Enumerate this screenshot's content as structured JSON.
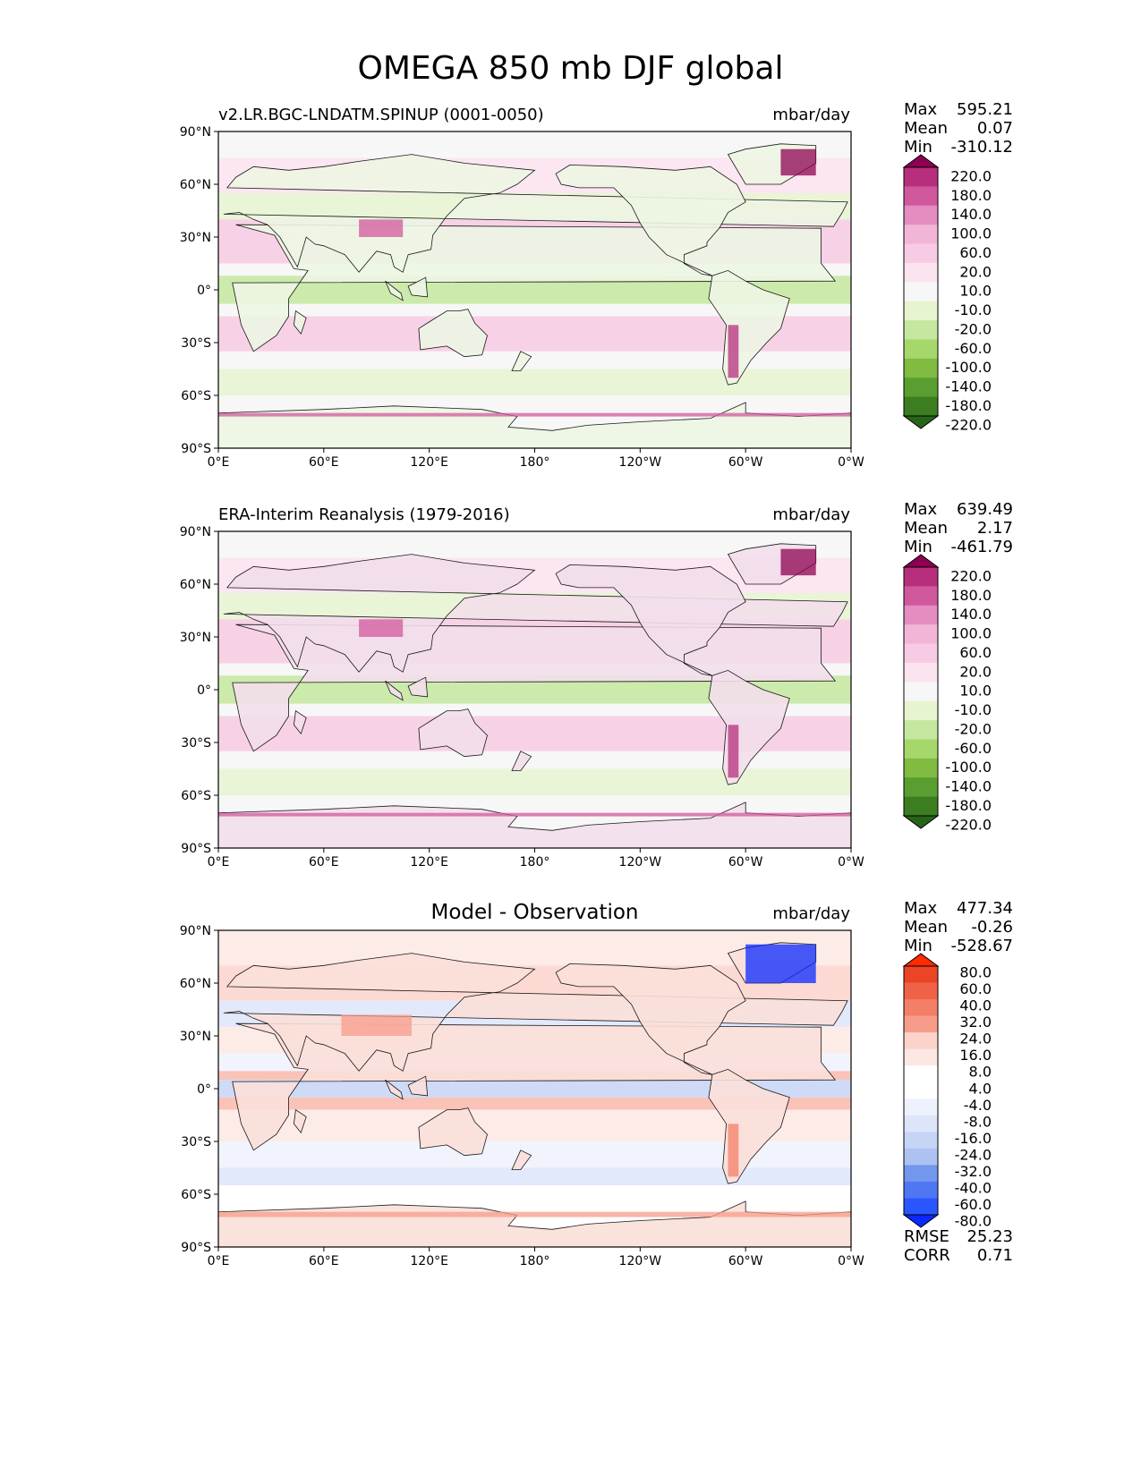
{
  "figure": {
    "title": "OMEGA 850 mb DJF global"
  },
  "colors": {
    "pink_scale": [
      "#276419",
      "#3b7d1f",
      "#5a9e31",
      "#7fbc41",
      "#a6d76b",
      "#c6e7a0",
      "#e6f5d0",
      "#f7f7f7",
      "#fbe3f0",
      "#f7cbe3",
      "#f1b5d8",
      "#e58cc0",
      "#d1589c",
      "#b72e7d",
      "#8e0152"
    ],
    "diff_scale": [
      "#0a28ff",
      "#2a56ff",
      "#4f77f4",
      "#7397ee",
      "#94adf0",
      "#aec2f2",
      "#c6d4f5",
      "#dde5f9",
      "#eef2fc",
      "#ffffff",
      "#ffffff",
      "#fde7e3",
      "#fbd3cb",
      "#f9b9ab",
      "#f79c8a",
      "#f47f67",
      "#f06248",
      "#ec4426",
      "#ff2a00"
    ]
  },
  "panels": [
    {
      "left_title": "v2.LR.BGC-LNDATM.SPINUP (0001-0050)",
      "center_title": "",
      "units": "mbar/day",
      "stats": [
        {
          "label": "Max",
          "value": "595.21"
        },
        {
          "label": "Mean",
          "value": "0.07"
        },
        {
          "label": "Min",
          "value": "-310.12"
        }
      ],
      "extra_stats": [],
      "colorbar_labels": [
        "220.0",
        "180.0",
        "140.0",
        "100.0",
        "60.0",
        "20.0",
        "10.0",
        "-10.0",
        "-20.0",
        "-60.0",
        "-100.0",
        "-140.0",
        "-180.0",
        "-220.0"
      ]
    },
    {
      "left_title": "ERA-Interim Reanalysis (1979-2016)",
      "center_title": "",
      "units": "mbar/day",
      "stats": [
        {
          "label": "Max",
          "value": "639.49"
        },
        {
          "label": "Mean",
          "value": "2.17"
        },
        {
          "label": "Min",
          "value": "-461.79"
        }
      ],
      "extra_stats": [],
      "colorbar_labels": [
        "220.0",
        "180.0",
        "140.0",
        "100.0",
        "60.0",
        "20.0",
        "10.0",
        "-10.0",
        "-20.0",
        "-60.0",
        "-100.0",
        "-140.0",
        "-180.0",
        "-220.0"
      ]
    },
    {
      "left_title": "",
      "center_title": "Model - Observation",
      "units": "mbar/day",
      "stats": [
        {
          "label": "Max",
          "value": "477.34"
        },
        {
          "label": "Mean",
          "value": "-0.26"
        },
        {
          "label": "Min",
          "value": "-528.67"
        }
      ],
      "extra_stats": [
        {
          "label": "RMSE",
          "value": "25.23"
        },
        {
          "label": "CORR",
          "value": "0.71"
        }
      ],
      "colorbar_labels": [
        "80.0",
        "60.0",
        "40.0",
        "32.0",
        "24.0",
        "16.0",
        "8.0",
        "4.0",
        "-4.0",
        "-8.0",
        "-16.0",
        "-24.0",
        "-32.0",
        "-40.0",
        "-60.0",
        "-80.0"
      ]
    }
  ],
  "chart_data": [
    {
      "type": "heatmap",
      "title": "v2.LR.BGC-LNDATM.SPINUP (0001-0050)",
      "units": "mbar/day",
      "x_ticks": [
        "0°E",
        "60°E",
        "120°E",
        "180°",
        "120°W",
        "60°W",
        "0°W"
      ],
      "y_ticks": [
        "90°N",
        "60°N",
        "30°N",
        "0°",
        "30°S",
        "60°S",
        "90°S"
      ],
      "xlim": [
        0,
        360
      ],
      "ylim": [
        -90,
        90
      ],
      "levels": [
        -220,
        -180,
        -140,
        -100,
        -60,
        -20,
        -10,
        10,
        20,
        60,
        100,
        140,
        180,
        220
      ],
      "max": 595.21,
      "mean": 0.07,
      "min": -310.12
    },
    {
      "type": "heatmap",
      "title": "ERA-Interim Reanalysis (1979-2016)",
      "units": "mbar/day",
      "x_ticks": [
        "0°E",
        "60°E",
        "120°E",
        "180°",
        "120°W",
        "60°W",
        "0°W"
      ],
      "y_ticks": [
        "90°N",
        "60°N",
        "30°N",
        "0°",
        "30°S",
        "60°S",
        "90°S"
      ],
      "xlim": [
        0,
        360
      ],
      "ylim": [
        -90,
        90
      ],
      "levels": [
        -220,
        -180,
        -140,
        -100,
        -60,
        -20,
        -10,
        10,
        20,
        60,
        100,
        140,
        180,
        220
      ],
      "max": 639.49,
      "mean": 2.17,
      "min": -461.79
    },
    {
      "type": "heatmap",
      "title": "Model - Observation",
      "units": "mbar/day",
      "x_ticks": [
        "0°E",
        "60°E",
        "120°E",
        "180°",
        "120°W",
        "60°W",
        "0°W"
      ],
      "y_ticks": [
        "90°N",
        "60°N",
        "30°N",
        "0°",
        "30°S",
        "60°S",
        "90°S"
      ],
      "xlim": [
        0,
        360
      ],
      "ylim": [
        -90,
        90
      ],
      "levels": [
        -80,
        -60,
        -40,
        -32,
        -24,
        -16,
        -8,
        -4,
        4,
        8,
        16,
        24,
        32,
        40,
        60,
        80
      ],
      "max": 477.34,
      "mean": -0.26,
      "min": -528.67,
      "rmse": 25.23,
      "corr": 0.71
    }
  ]
}
